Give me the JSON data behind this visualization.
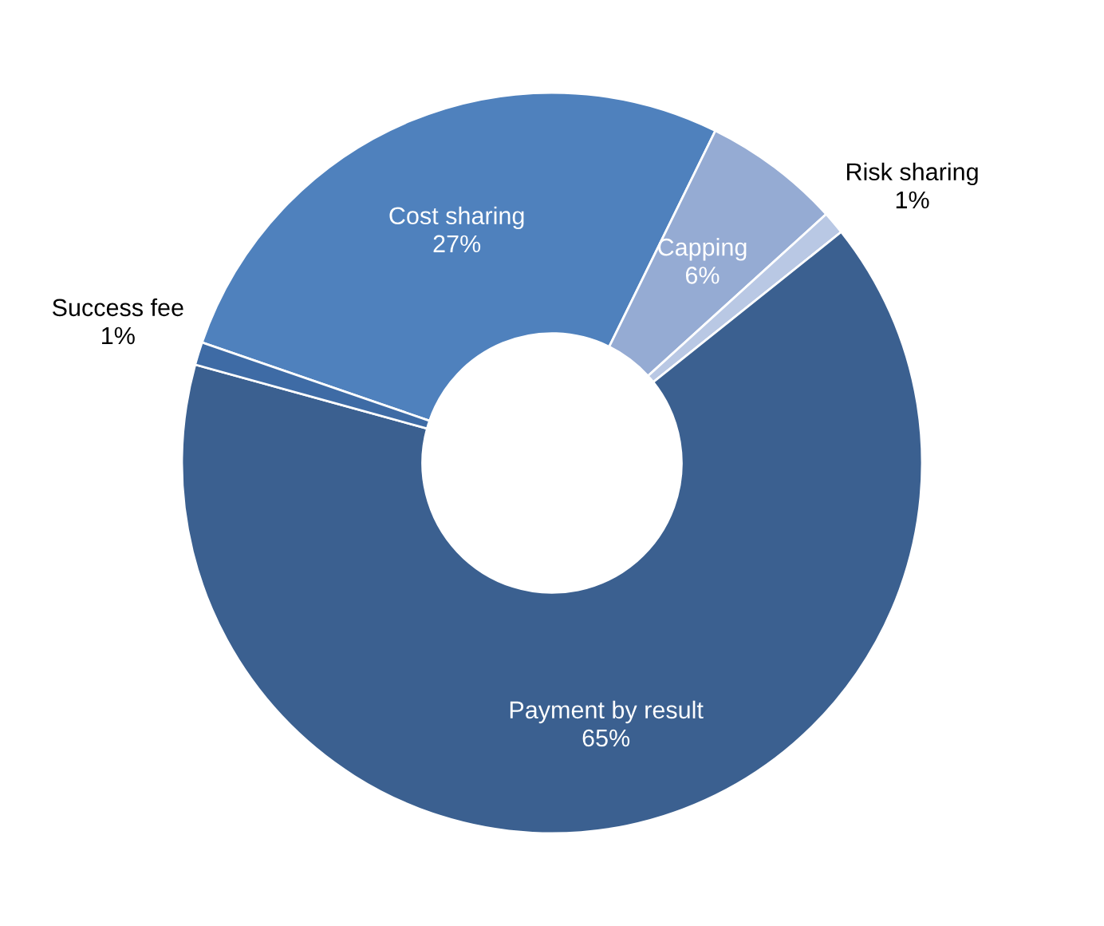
{
  "chart_data": {
    "type": "donut",
    "categories": [
      "Cost sharing",
      "Capping",
      "Risk sharing",
      "Payment by result",
      "Success fee"
    ],
    "values": [
      27,
      6,
      1,
      65,
      1
    ],
    "colors": [
      "#4f81bd",
      "#95abd3",
      "#b9c8e4",
      "#3b6090",
      "#3e6ba5"
    ],
    "value_labels": [
      "27%",
      "6%",
      "1%",
      "65%",
      "1%"
    ]
  }
}
